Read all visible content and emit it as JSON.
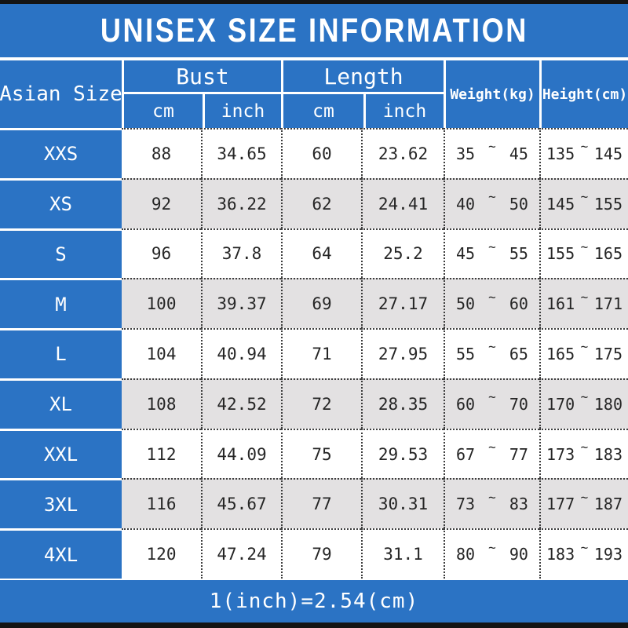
{
  "title": "UNISEX SIZE INFORMATION",
  "footer_note": "1(inch)=2.54(cm)",
  "range_separator": "~",
  "colors": {
    "accent_blue": "#2b73c4",
    "stripe_gray": "#e3e1e2",
    "frame_black": "#141414"
  },
  "header": {
    "size_column": "Asian Size",
    "groups": [
      {
        "label": "Bust",
        "sub": [
          "cm",
          "inch"
        ]
      },
      {
        "label": "Length",
        "sub": [
          "cm",
          "inch"
        ]
      }
    ],
    "weight": "Weight(kg)",
    "height": "Height(cm)"
  },
  "rows": [
    {
      "size": "XXS",
      "bust_cm": "88",
      "bust_in": "34.65",
      "len_cm": "60",
      "len_in": "23.62",
      "w_min": "35",
      "w_max": "45",
      "h_min": "135",
      "h_max": "145"
    },
    {
      "size": "XS",
      "bust_cm": "92",
      "bust_in": "36.22",
      "len_cm": "62",
      "len_in": "24.41",
      "w_min": "40",
      "w_max": "50",
      "h_min": "145",
      "h_max": "155"
    },
    {
      "size": "S",
      "bust_cm": "96",
      "bust_in": "37.8",
      "len_cm": "64",
      "len_in": "25.2",
      "w_min": "45",
      "w_max": "55",
      "h_min": "155",
      "h_max": "165"
    },
    {
      "size": "M",
      "bust_cm": "100",
      "bust_in": "39.37",
      "len_cm": "69",
      "len_in": "27.17",
      "w_min": "50",
      "w_max": "60",
      "h_min": "161",
      "h_max": "171"
    },
    {
      "size": "L",
      "bust_cm": "104",
      "bust_in": "40.94",
      "len_cm": "71",
      "len_in": "27.95",
      "w_min": "55",
      "w_max": "65",
      "h_min": "165",
      "h_max": "175"
    },
    {
      "size": "XL",
      "bust_cm": "108",
      "bust_in": "42.52",
      "len_cm": "72",
      "len_in": "28.35",
      "w_min": "60",
      "w_max": "70",
      "h_min": "170",
      "h_max": "180"
    },
    {
      "size": "XXL",
      "bust_cm": "112",
      "bust_in": "44.09",
      "len_cm": "75",
      "len_in": "29.53",
      "w_min": "67",
      "w_max": "77",
      "h_min": "173",
      "h_max": "183"
    },
    {
      "size": "3XL",
      "bust_cm": "116",
      "bust_in": "45.67",
      "len_cm": "77",
      "len_in": "30.31",
      "w_min": "73",
      "w_max": "83",
      "h_min": "177",
      "h_max": "187"
    },
    {
      "size": "4XL",
      "bust_cm": "120",
      "bust_in": "47.24",
      "len_cm": "79",
      "len_in": "31.1",
      "w_min": "80",
      "w_max": "90",
      "h_min": "183",
      "h_max": "193"
    }
  ]
}
